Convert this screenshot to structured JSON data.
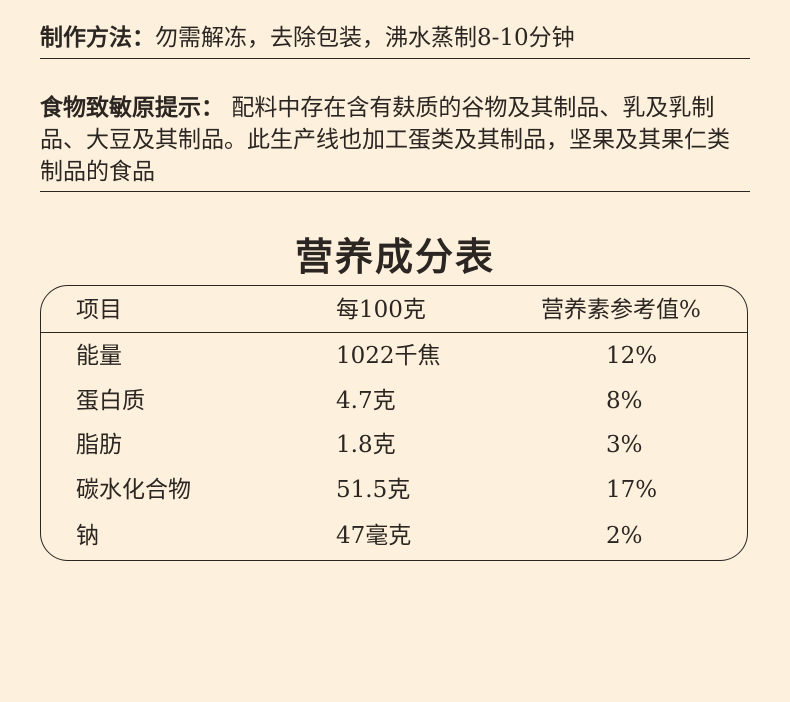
{
  "preparation": {
    "label": "制作方法：",
    "text": "勿需解冻，去除包装，沸水蒸制8-10分钟"
  },
  "allergen": {
    "label": "食物致敏原提示：",
    "text": "配料中存在含有麸质的谷物及其制品、乳及乳制品、大豆及其制品。此生产线也加工蛋类及其制品，坚果及其果仁类制品的食品"
  },
  "nutrition": {
    "title": "营养成分表",
    "headers": [
      "项目",
      "每100克",
      "营养素参考值%"
    ],
    "rows": [
      [
        "能量",
        "1022千焦",
        "12%"
      ],
      [
        "蛋白质",
        "4.7克",
        "8%"
      ],
      [
        "脂肪",
        "1.8克",
        "3%"
      ],
      [
        "碳水化合物",
        "51.5克",
        "17%"
      ],
      [
        "钠",
        "47毫克",
        "2%"
      ]
    ]
  },
  "colors": {
    "background": "#fdf0dc",
    "text": "#2b2622"
  }
}
